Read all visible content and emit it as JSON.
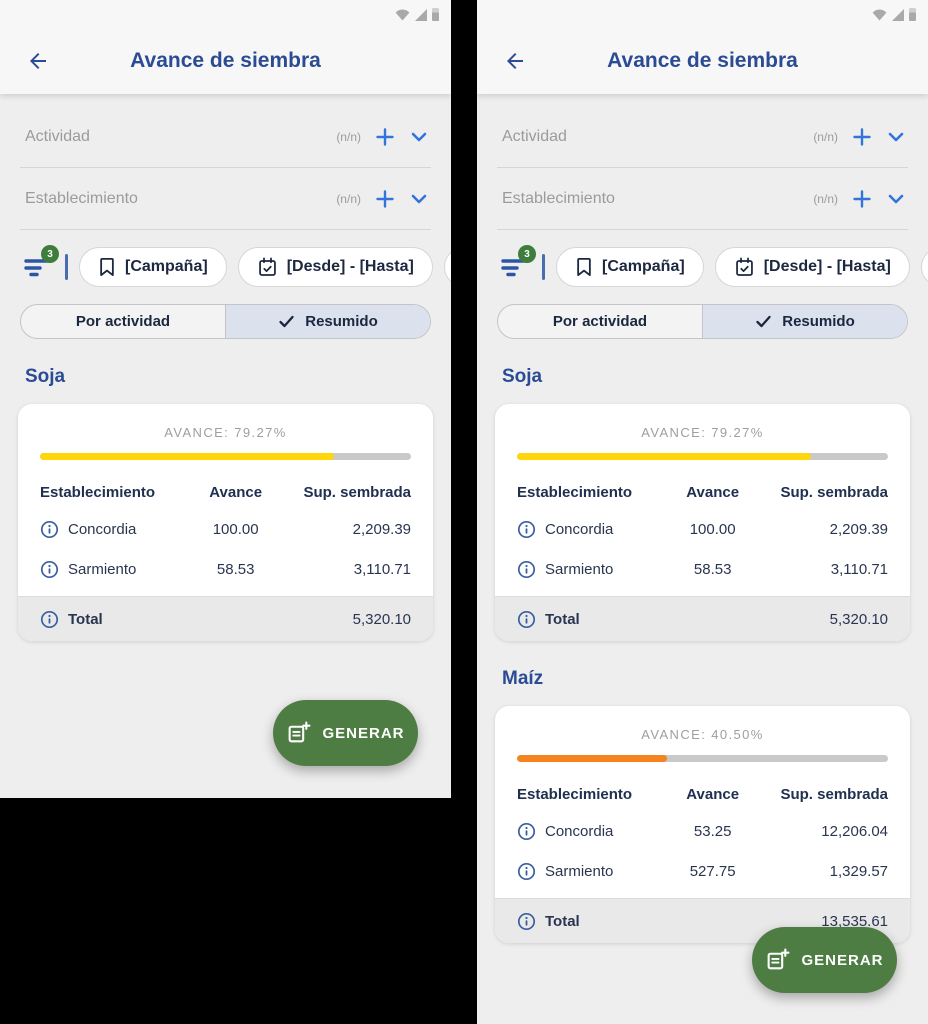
{
  "status_bar": {
    "icons": [
      "wifi-icon",
      "signal-icon",
      "battery-icon"
    ]
  },
  "header": {
    "title": "Avance de siembra",
    "back_icon": "arrow-left-icon"
  },
  "filters": {
    "fields": [
      {
        "label": "Actividad",
        "count": "(n/n)"
      },
      {
        "label": "Establecimiento",
        "count": "(n/n)"
      }
    ],
    "badge_count": "3",
    "chips": [
      {
        "icon": "bookmark-icon",
        "label": "[Campaña]"
      },
      {
        "icon": "calendar-check-icon",
        "label": "[Desde] - [Hasta]"
      }
    ]
  },
  "view_toggle": {
    "options": [
      {
        "label": "Por actividad",
        "selected": false
      },
      {
        "label": "Resumido",
        "selected": true
      }
    ]
  },
  "table_headers": [
    "Establecimiento",
    "Avance",
    "Sup. sembrada"
  ],
  "crops": [
    {
      "name": "Soja",
      "avance_label": "AVANCE: 79.27%",
      "avance_pct": 79.27,
      "bar_color": "#FFD60A",
      "rows": [
        {
          "name": "Concordia",
          "avance": "100.00",
          "sup": "2,209.39"
        },
        {
          "name": "Sarmiento",
          "avance": "58.53",
          "sup": "3,110.71"
        }
      ],
      "total": {
        "name": "Total",
        "sup": "5,320.10"
      }
    },
    {
      "name": "Maíz",
      "avance_label": "AVANCE: 40.50%",
      "avance_pct": 40.5,
      "bar_color": "#F5831F",
      "rows": [
        {
          "name": "Concordia",
          "avance": "53.25",
          "sup": "12,206.04"
        },
        {
          "name": "Sarmiento",
          "avance": "527.75",
          "sup": "1,329.57"
        }
      ],
      "total": {
        "name": "Total",
        "sup": "13,535.61"
      }
    }
  ],
  "fab": {
    "label": "GENERAR",
    "icon": "note-add-icon"
  },
  "colors": {
    "accent_blue": "#3274D9",
    "navy": "#2B4C94",
    "chip_navy": "#1C2740",
    "fab_green": "#4E7D44",
    "badge_green": "#3F7D3C",
    "soja_bar_yellow": "#FFD60A",
    "maiz_bar_orange": "#F5831F",
    "total_row_gray": "#E9E9E9"
  }
}
